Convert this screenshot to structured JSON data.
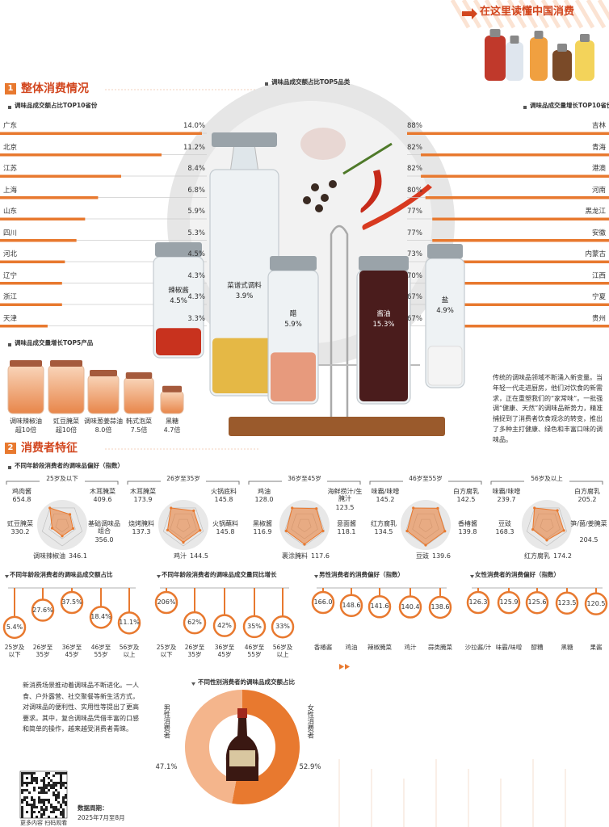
{
  "header": {
    "title": "在这里读懂中国消费"
  },
  "sections": [
    {
      "number": 1,
      "title": "整体消费情况"
    },
    {
      "number": 2,
      "title": "消费者特征"
    }
  ],
  "chart_data": [
    {
      "type": "bar",
      "title": "调味品成交额占比TOP10省份",
      "color": "#e8792f",
      "categories": [
        "广东",
        "北京",
        "江苏",
        "上海",
        "山东",
        "四川",
        "河北",
        "辽宁",
        "浙江",
        "天津"
      ],
      "values": [
        14.0,
        11.2,
        8.4,
        6.8,
        5.9,
        5.3,
        4.5,
        4.3,
        4.3,
        3.3
      ],
      "value_labels": [
        "14.0%",
        "11.2%",
        "8.4%",
        "6.8%",
        "5.9%",
        "5.3%",
        "4.5%",
        "4.3%",
        "4.3%",
        "3.3%"
      ]
    },
    {
      "type": "bar",
      "title": "调味品成交量增长TOP10省份",
      "color": "#e8792f",
      "categories": [
        "吉林",
        "青海",
        "港澳",
        "河南",
        "黑龙江",
        "安徽",
        "内蒙古",
        "江西",
        "宁夏",
        "贵州"
      ],
      "values": [
        88,
        82,
        82,
        80,
        77,
        77,
        73,
        70,
        67,
        67
      ],
      "value_labels": [
        "88%",
        "82%",
        "82%",
        "80%",
        "77%",
        "77%",
        "73%",
        "70%",
        "67%",
        "67%"
      ]
    },
    {
      "type": "bar",
      "title": "调味品成交额占比TOP5品类",
      "categories": [
        "辣椒酱",
        "菜谱式调料",
        "醋",
        "酱油",
        "盐"
      ],
      "values": [
        4.5,
        3.9,
        5.9,
        15.3,
        4.9
      ],
      "value_labels": [
        "4.5%",
        "3.9%",
        "5.9%",
        "15.3%",
        "4.9%"
      ],
      "colors": [
        "#c8321e",
        "#e5b845",
        "#e79a7d",
        "#4a1c1c",
        "#f4f4f4"
      ]
    },
    {
      "type": "bar",
      "title": "调味品成交量增长TOP5产品",
      "color": "#ee9a62",
      "categories": [
        "调味辣椒油",
        "豇豆腌菜",
        "调味葱姜蒜油",
        "韩式泡菜",
        "黑糖"
      ],
      "values": [
        10,
        10,
        8.0,
        7.5,
        4.7
      ],
      "value_labels": [
        "超10倍",
        "超10倍",
        "8.0倍",
        "7.5倍",
        "4.7倍"
      ]
    },
    {
      "type": "radar",
      "title": "不同年龄段消费者的调味品偏好（指数）",
      "color": "#e8792f",
      "panels": [
        {
          "title": "25岁及以下",
          "categories": [
            "鸡肉酱",
            "木耳腌菜",
            "基础调味品组合",
            "调味辣椒油",
            "豇豆腌菜"
          ],
          "values": [
            654.8,
            409.6,
            356.0,
            346.1,
            330.2
          ],
          "value_labels": [
            "654.8",
            "409.6",
            "356.0",
            "346.1",
            "330.2"
          ]
        },
        {
          "title": "26岁至35岁",
          "categories": [
            "木耳腌菜",
            "火锅底料",
            "火锅蘸料",
            "鸡汁",
            "烧烤腌料"
          ],
          "values": [
            173.9,
            145.8,
            145.8,
            144.5,
            137.3
          ],
          "value_labels": [
            "173.9",
            "145.8",
            "145.8",
            "144.5",
            "137.3"
          ]
        },
        {
          "title": "36岁至45岁",
          "categories": [
            "鸡油",
            "海鲜捞汁/生腌汁",
            "意面酱",
            "裹涂腌料",
            "黑椒酱"
          ],
          "values": [
            128.0,
            123.5,
            118.1,
            117.6,
            116.9
          ],
          "value_labels": [
            "128.0",
            "123.5",
            "118.1",
            "117.6",
            "116.9"
          ]
        },
        {
          "title": "46岁至55岁",
          "categories": [
            "味霸/味噌",
            "白方腐乳",
            "香椿酱",
            "豆豉",
            "红方腐乳"
          ],
          "values": [
            145.2,
            142.5,
            139.8,
            139.6,
            134.5
          ],
          "value_labels": [
            "145.2",
            "142.5",
            "139.8",
            "139.6",
            "134.5"
          ]
        },
        {
          "title": "56岁及以上",
          "categories": [
            "味霸/味噌",
            "白方腐乳",
            "笋/菌/姜腌菜",
            "红方腐乳",
            "豆豉"
          ],
          "values": [
            239.7,
            205.2,
            204.5,
            174.2,
            168.3
          ],
          "value_labels": [
            "239.7",
            "205.2",
            "204.5",
            "174.2",
            "168.3"
          ]
        }
      ]
    },
    {
      "type": "dot",
      "title": "不同年龄段消费者的调味品成交额占比",
      "color": "#e8792f",
      "categories": [
        "25岁及以下",
        "26岁至35岁",
        "36岁至45岁",
        "46岁至55岁",
        "56岁及以上"
      ],
      "values": [
        5.4,
        27.6,
        37.5,
        18.4,
        11.1
      ],
      "value_labels": [
        "5.4%",
        "27.6%",
        "37.5%",
        "18.4%",
        "11.1%"
      ]
    },
    {
      "type": "dot",
      "title": "不同年龄段消费者的调味品成交量同比增长",
      "color": "#e8792f",
      "categories": [
        "25岁及以下",
        "26岁至35岁",
        "36岁至45岁",
        "46岁至55岁",
        "56岁及以上"
      ],
      "values": [
        206,
        62,
        42,
        35,
        33
      ],
      "value_labels": [
        "206%",
        "62%",
        "42%",
        "35%",
        "33%"
      ]
    },
    {
      "type": "dot",
      "title": "男性消费者的消费偏好（指数）",
      "color": "#e8792f",
      "categories": [
        "香椿酱",
        "鸡油",
        "辣椒腌菜",
        "鸡汁",
        "蒜类腌菜"
      ],
      "values": [
        166.0,
        148.6,
        141.6,
        140.4,
        138.6
      ],
      "value_labels": [
        "166.0",
        "148.6",
        "141.6",
        "140.4",
        "138.6"
      ]
    },
    {
      "type": "dot",
      "title": "女性消费者的消费偏好（指数）",
      "color": "#e8792f",
      "categories": [
        "沙拉酱/汁",
        "味霸/味噌",
        "醪糟",
        "黑糖",
        "果酱"
      ],
      "values": [
        126.3,
        125.9,
        125.6,
        123.5,
        120.5
      ],
      "value_labels": [
        "126.3",
        "125.9",
        "125.6",
        "123.5",
        "120.5"
      ]
    },
    {
      "type": "pie",
      "title": "不同性别消费者的调味品成交额占比",
      "categories": [
        "男性消费者",
        "女性消费者"
      ],
      "values": [
        47.1,
        52.9
      ],
      "value_labels": [
        "47.1%",
        "52.9%"
      ],
      "colors": [
        "#f4b58c",
        "#e8792f"
      ]
    }
  ],
  "texts": {
    "intro": "传统的调味品领域不断涌入新变量。当年轻一代走进厨房，他们对饮食的新需求，正在重塑我们的“家常味”。一批强调“健康、天然”的调味品新势力，精准捕捉到了消费者饮食观念的转变，推出了多种主打健康、绿色和丰富口味的调味品。",
    "scene": "新消费场景推动着调味品不断进化。一人食、户外露营、社交聚餐等新生活方式，对调味品的便利性、实用性等提出了更高要求。其中，复合调味品凭借丰富的口感和简单的操作，越来越受消费者青睐。"
  },
  "footer": {
    "qr_caption": "更多内容 扫码观看",
    "period_label": "数据周期：",
    "period": "2025年7月至8月"
  }
}
